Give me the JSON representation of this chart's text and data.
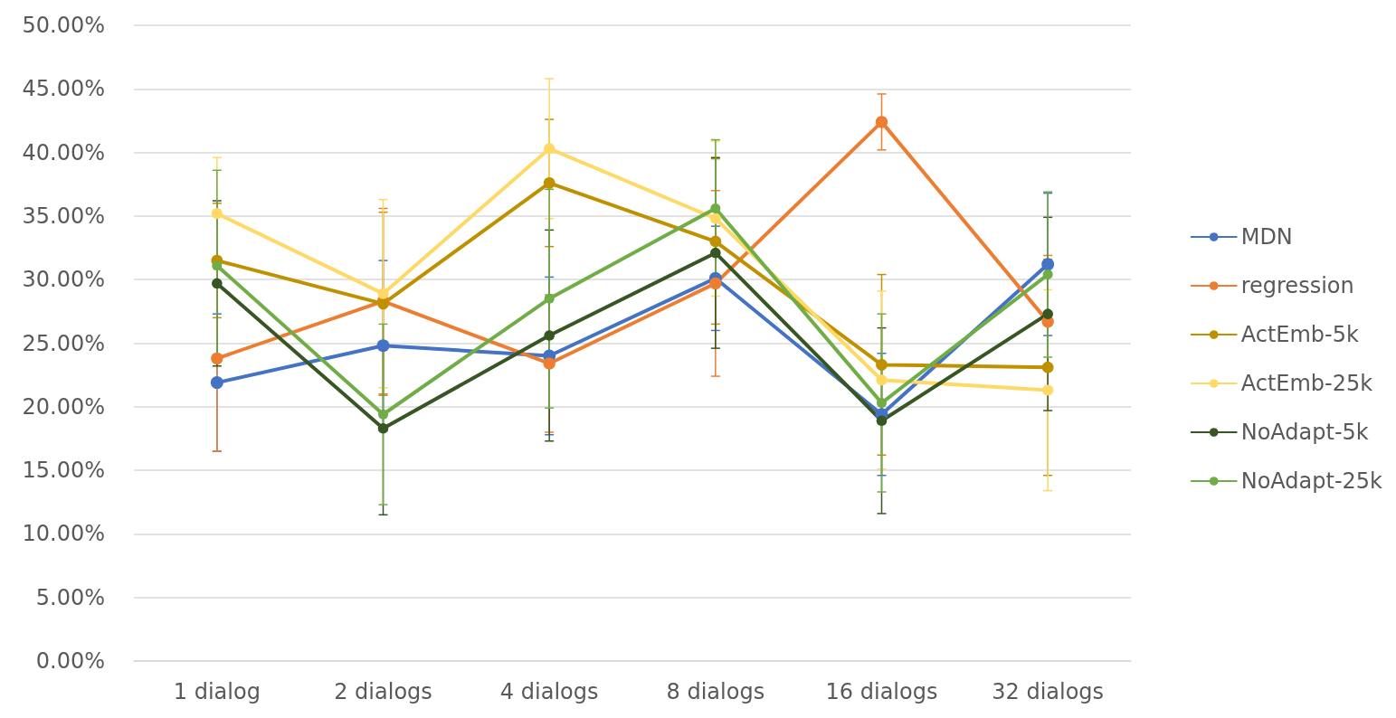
{
  "chart_data": {
    "type": "line",
    "categories": [
      "1 dialog",
      "2 dialogs",
      "4 dialogs",
      "8 dialogs",
      "16 dialogs",
      "32 dialogs"
    ],
    "ylim": [
      0,
      50
    ],
    "yticks": [
      {
        "value": 0,
        "label": "0.00%"
      },
      {
        "value": 5,
        "label": "5.00%"
      },
      {
        "value": 10,
        "label": "10.00%"
      },
      {
        "value": 15,
        "label": "15.00%"
      },
      {
        "value": 20,
        "label": "20.00%"
      },
      {
        "value": 25,
        "label": "25.00%"
      },
      {
        "value": 30,
        "label": "30.00%"
      },
      {
        "value": 35,
        "label": "35.00%"
      },
      {
        "value": 40,
        "label": "40.00%"
      },
      {
        "value": 45,
        "label": "45.00%"
      },
      {
        "value": 50,
        "label": "50.00%"
      }
    ],
    "grid": "y",
    "legend": "right",
    "marker": "circle",
    "line_style": "solid",
    "series": [
      {
        "name": "MDN",
        "color": "#4472c4",
        "values": [
          21.9,
          24.8,
          24.0,
          30.1,
          19.4,
          31.2
        ],
        "errors": [
          5.4,
          6.7,
          6.2,
          4.1,
          4.8,
          5.6
        ]
      },
      {
        "name": "regression",
        "color": "#ed7d31",
        "values": [
          23.8,
          28.3,
          23.4,
          29.7,
          42.4,
          26.7
        ],
        "errors": [
          7.3,
          7.3,
          5.4,
          7.3,
          2.2,
          5.2
        ]
      },
      {
        "name": "ActEmb-5k",
        "color": "#bf9000",
        "values": [
          31.5,
          28.1,
          37.6,
          33.0,
          23.3,
          23.1
        ],
        "errors": [
          4.5,
          7.2,
          5.0,
          6.5,
          7.1,
          8.5
        ]
      },
      {
        "name": "ActEmb-25k",
        "color": "#ffd966",
        "values": [
          35.2,
          28.9,
          40.3,
          34.8,
          22.1,
          21.3
        ],
        "errors": [
          4.4,
          7.4,
          5.5,
          6.1,
          7.0,
          7.9
        ]
      },
      {
        "name": "NoAdapt-5k",
        "color": "#375623",
        "values": [
          29.7,
          18.3,
          25.6,
          32.1,
          18.9,
          27.3
        ],
        "errors": [
          6.5,
          6.8,
          8.3,
          7.5,
          7.3,
          7.6
        ]
      },
      {
        "name": "NoAdapt-25k",
        "color": "#70ad47",
        "values": [
          31.1,
          19.4,
          28.5,
          35.6,
          20.3,
          30.4
        ],
        "errors": [
          7.5,
          7.1,
          8.6,
          5.4,
          7.0,
          6.5
        ]
      }
    ]
  }
}
